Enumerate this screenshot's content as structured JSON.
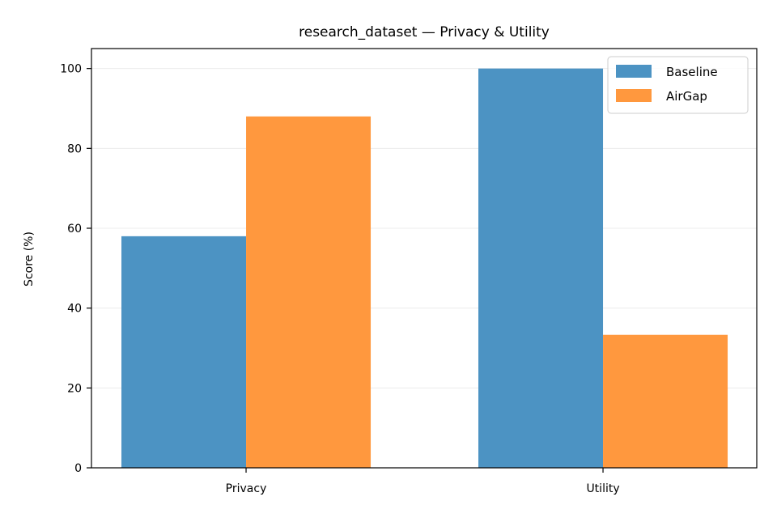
{
  "chart_data": {
    "type": "bar",
    "title": "research_dataset — Privacy & Utility",
    "xlabel": "",
    "ylabel": "Score (%)",
    "categories": [
      "Privacy",
      "Utility"
    ],
    "series": [
      {
        "name": "Baseline",
        "values": [
          58,
          100
        ],
        "color": "#4c93c3"
      },
      {
        "name": "AirGap",
        "values": [
          88,
          33.3
        ],
        "color": "#ff983e"
      }
    ],
    "ylim": [
      0,
      105
    ],
    "yticks": [
      0,
      20,
      40,
      60,
      80,
      100
    ],
    "grid": "horizontal",
    "legend_position": "top-right"
  }
}
